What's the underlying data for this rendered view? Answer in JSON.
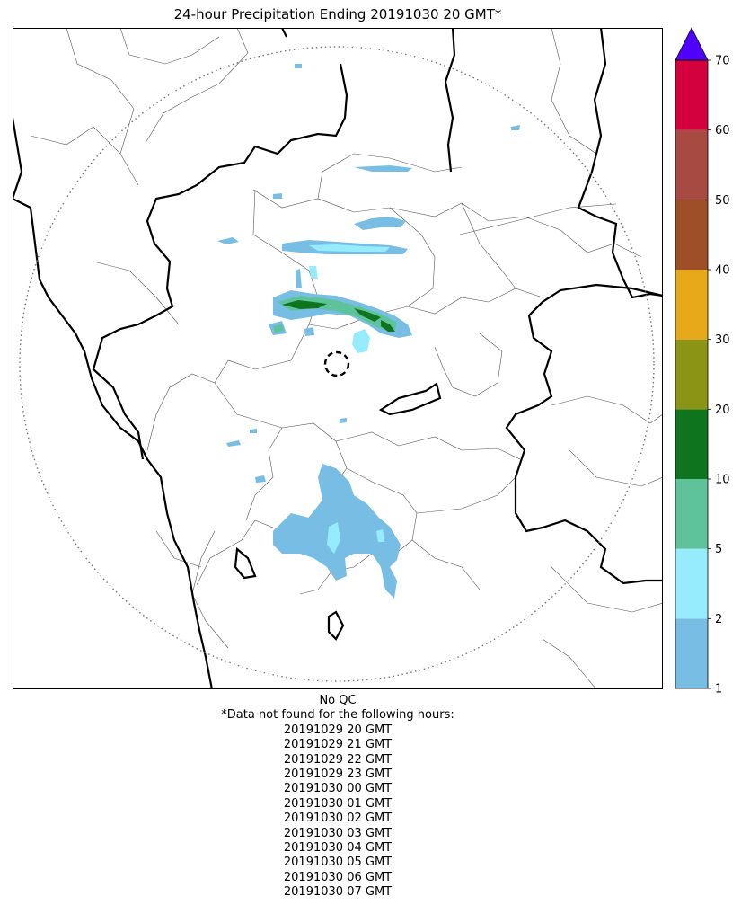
{
  "title": "24-hour Precipitation Ending 20191030 20 GMT*",
  "colorbar": {
    "extend": "max",
    "over_color": "#5000ff",
    "ticks": [
      "1",
      "2",
      "5",
      "10",
      "20",
      "30",
      "40",
      "50",
      "60",
      "70"
    ],
    "bins": [
      {
        "from": "1",
        "to": "2",
        "color": "#78bee4"
      },
      {
        "from": "2",
        "to": "5",
        "color": "#96ecfc"
      },
      {
        "from": "5",
        "to": "10",
        "color": "#5ec39a"
      },
      {
        "from": "10",
        "to": "20",
        "color": "#0e741d"
      },
      {
        "from": "20",
        "to": "30",
        "color": "#8b9414"
      },
      {
        "from": "30",
        "to": "40",
        "color": "#e7a81a"
      },
      {
        "from": "40",
        "to": "50",
        "color": "#9e4f27"
      },
      {
        "from": "50",
        "to": "60",
        "color": "#a64a42"
      },
      {
        "from": "60",
        "to": "70",
        "color": "#d4013f"
      }
    ]
  },
  "footer": {
    "qc": "No QC",
    "missing_header": "*Data not found for the following hours:",
    "missing_hours": [
      "20191029 20 GMT",
      "20191029 21 GMT",
      "20191029 22 GMT",
      "20191029 23 GMT",
      "20191030 00 GMT",
      "20191030 01 GMT",
      "20191030 02 GMT",
      "20191030 03 GMT",
      "20191030 04 GMT",
      "20191030 05 GMT",
      "20191030 06 GMT",
      "20191030 07 GMT"
    ]
  },
  "map": {
    "projection_frame": "rectangular",
    "radar_range_ring": "dotted circle",
    "radar_site_marker": "dashed circle",
    "boundaries": [
      "state borders (thick)",
      "district borders (thin)",
      "coastline"
    ]
  }
}
